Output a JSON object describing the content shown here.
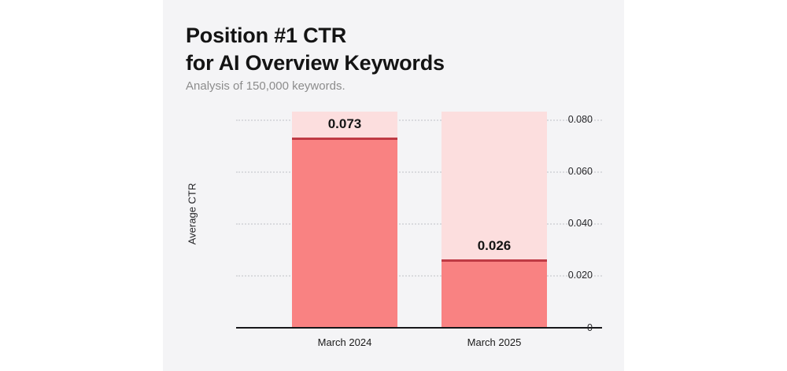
{
  "card": {
    "title_line1": "Position #1 CTR",
    "title_line2": "for AI Overview Keywords",
    "subtitle": "Analysis of 150,000 keywords."
  },
  "chart_data": {
    "type": "bar",
    "title": "Position #1 CTR for AI Overview Keywords",
    "subtitle": "Analysis of 150,000 keywords.",
    "categories": [
      "March 2024",
      "March 2025"
    ],
    "values": [
      0.073,
      0.026
    ],
    "value_labels": [
      "0.073",
      "0.026"
    ],
    "xlabel": "",
    "ylabel": "Average CTR",
    "ylim": [
      0,
      0.083
    ],
    "yticks": [
      0,
      0.02,
      0.04,
      0.06,
      0.08
    ],
    "ytick_labels": [
      "0",
      "0.020",
      "0.040",
      "0.060",
      "0.080"
    ],
    "grid": "horizontal-dotted",
    "legend": "none",
    "colors": {
      "bar_fill": "#f98282",
      "bar_track": "#fcdede",
      "bar_top_line": "#bf3a44",
      "card_background": "#f4f4f6",
      "page_background": "#ffffff",
      "grid_color": "#d9dade",
      "axis_line": "#17171a",
      "title_color": "#141414",
      "subtitle_color": "#8c8c8c",
      "tick_color": "#27272a"
    }
  }
}
